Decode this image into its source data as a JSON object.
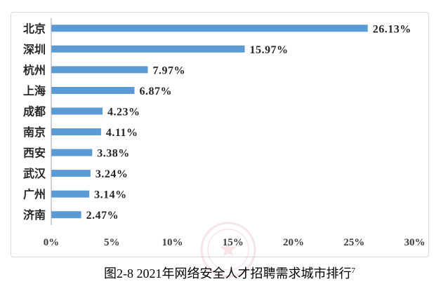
{
  "chart_data": {
    "type": "bar",
    "orientation": "horizontal",
    "categories": [
      "北京",
      "深圳",
      "杭州",
      "上海",
      "成都",
      "南京",
      "西安",
      "武汉",
      "广州",
      "济南"
    ],
    "values": [
      26.13,
      15.97,
      7.97,
      6.87,
      4.23,
      4.11,
      3.38,
      3.24,
      3.14,
      2.47
    ],
    "value_labels": [
      "26.13%",
      "15.97%",
      "7.97%",
      "6.87%",
      "4.23%",
      "4.11%",
      "3.38%",
      "3.24%",
      "3.14%",
      "2.47%"
    ],
    "xlim": [
      0,
      30
    ],
    "xticks": [
      0,
      5,
      10,
      15,
      20,
      25,
      30
    ],
    "xtick_labels": [
      "0%",
      "5%",
      "10%",
      "15%",
      "20%",
      "25%",
      "30%"
    ],
    "grid": false,
    "legend": "none",
    "colors": {
      "bar": "#5b9bd5",
      "axis": "#a6a6a6",
      "label": "#262626",
      "tick_label": "#404040",
      "frame": "#d9d9d9"
    }
  },
  "caption": {
    "text": "图2-8 2021年网络安全人才招聘需求城市排行",
    "superscript": "7"
  },
  "watermark": {
    "color": "#e8a8a8"
  }
}
